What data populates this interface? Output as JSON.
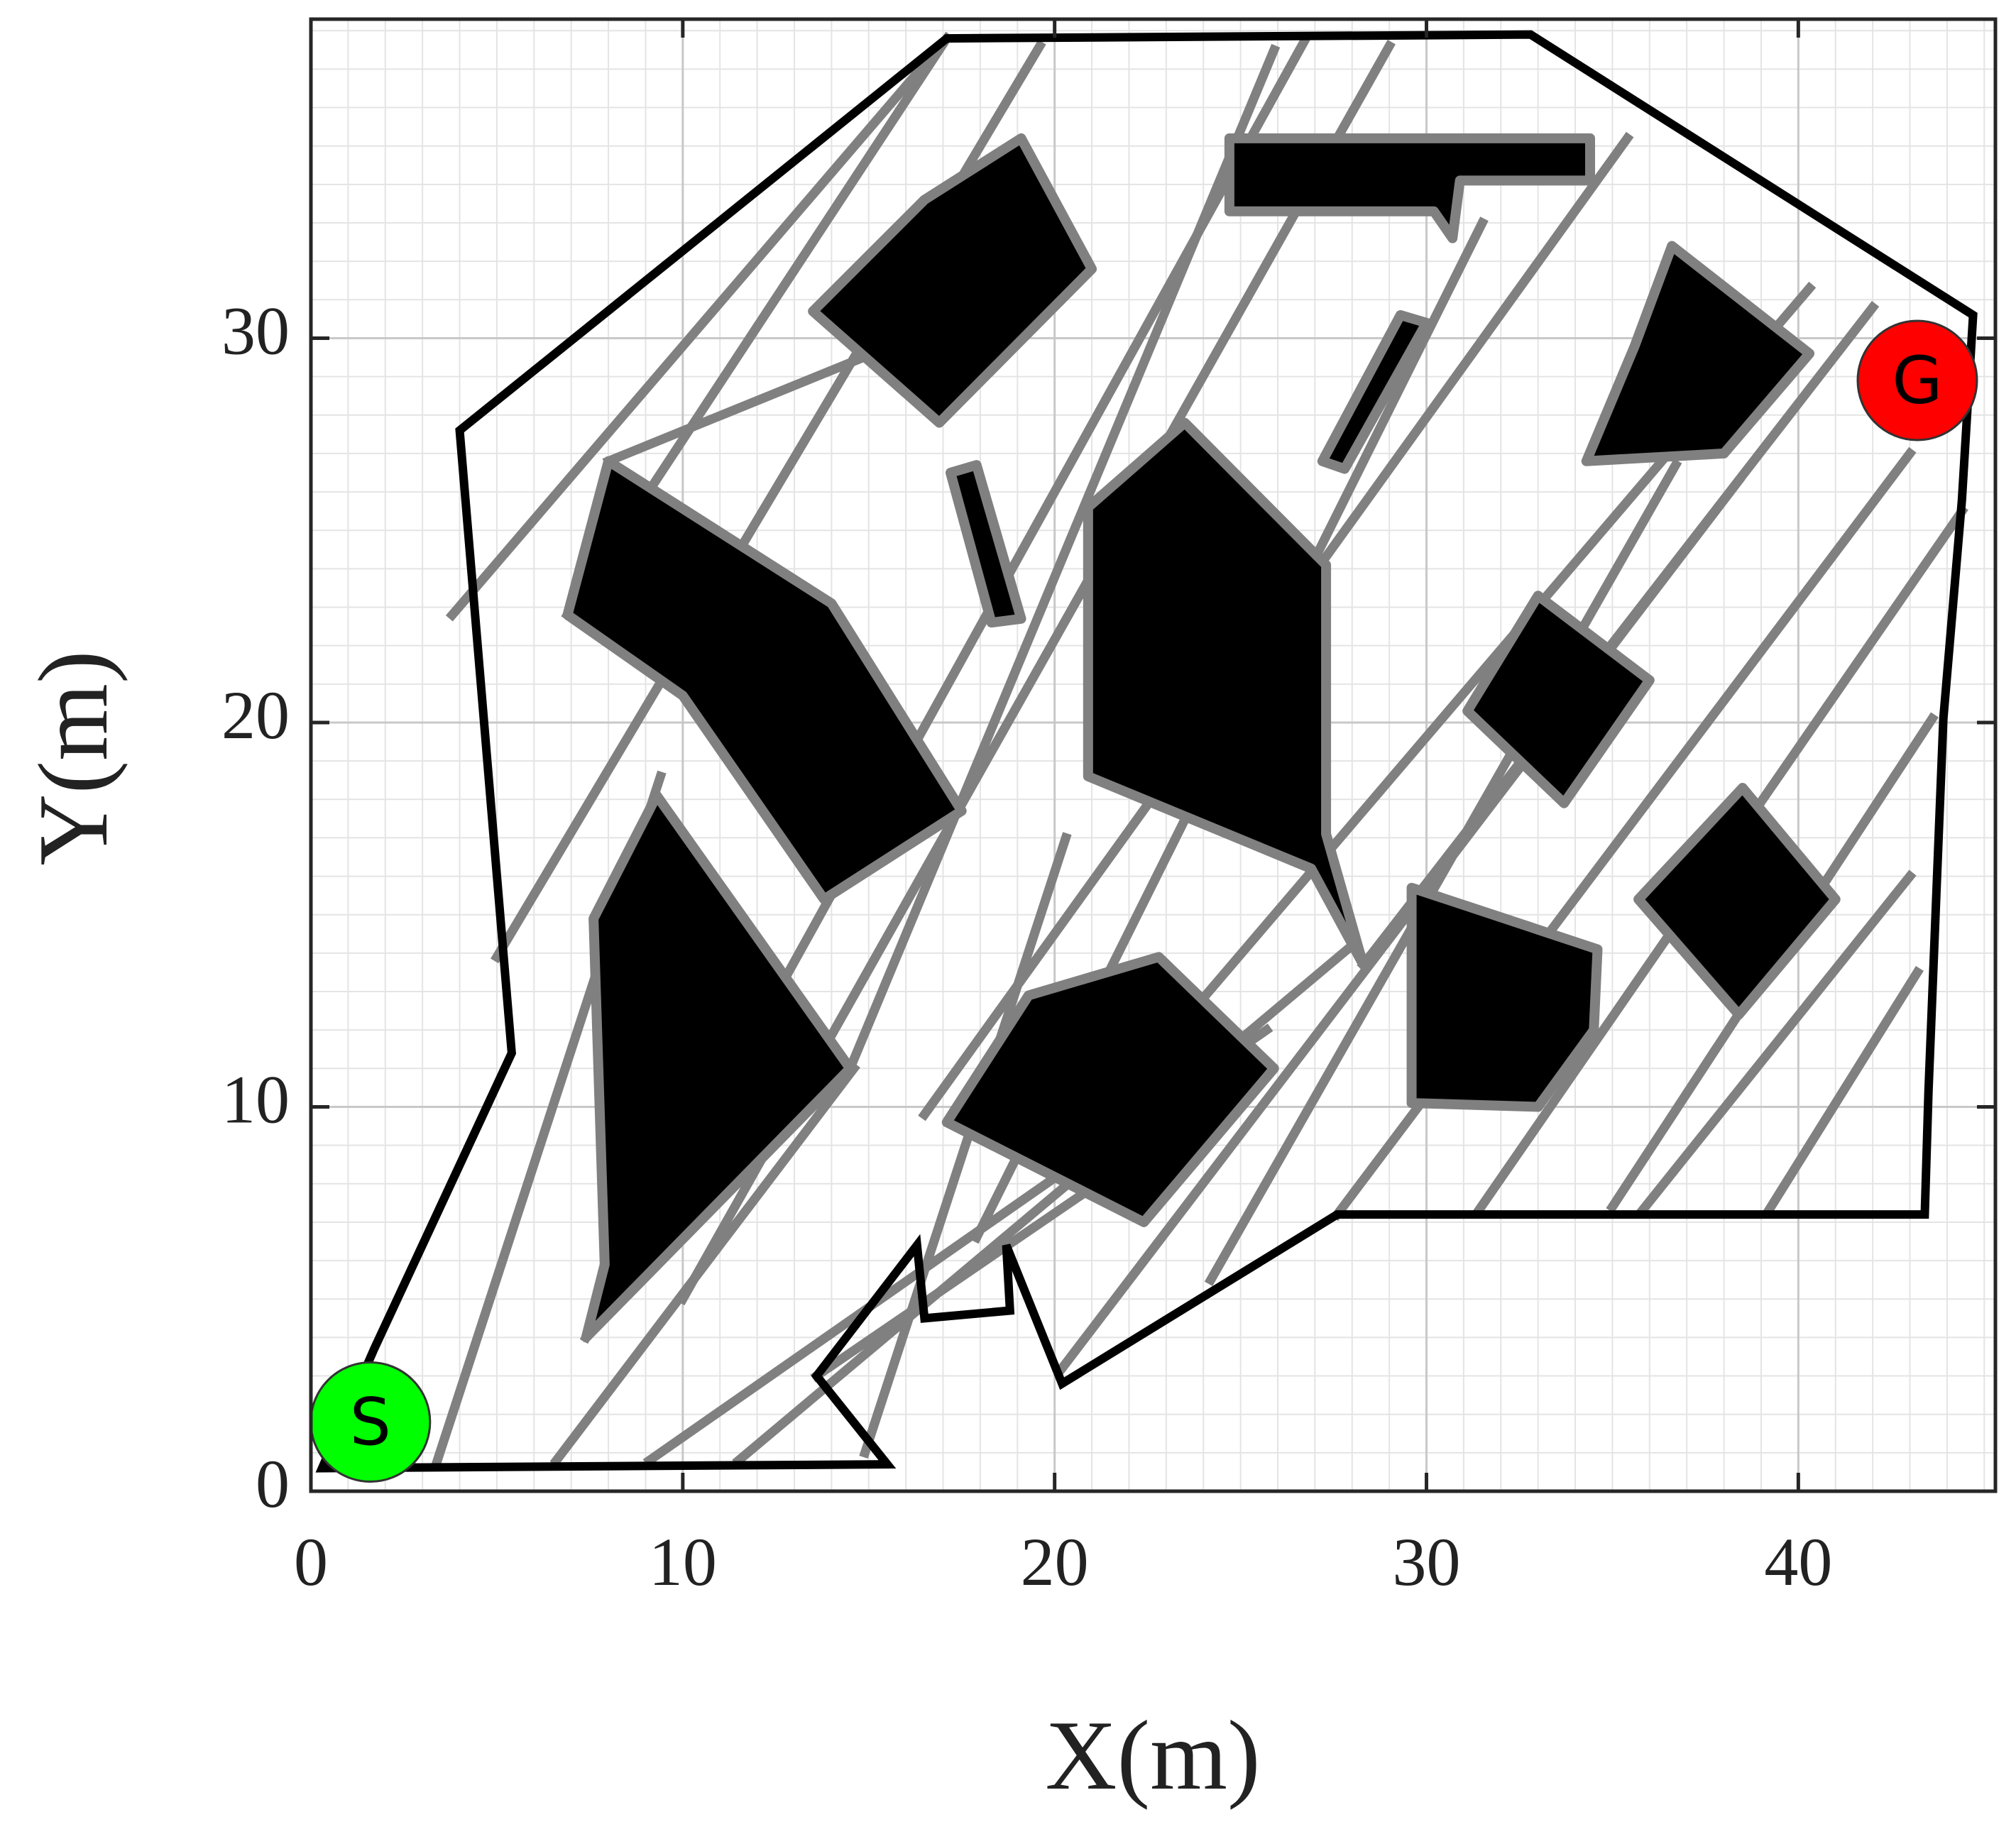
{
  "chart_data": {
    "type": "map",
    "x_label": "X(m)",
    "y_label": "Y(m)",
    "xlim": [
      0,
      45.3
    ],
    "ylim": [
      0,
      38.3
    ],
    "xticks": [
      0,
      10,
      20,
      30,
      40
    ],
    "yticks": [
      0,
      10,
      20,
      30
    ],
    "grid": true,
    "boundary": {
      "color": "#000000",
      "points": [
        [
          0.3,
          0.6
        ],
        [
          15.5,
          0.7
        ],
        [
          13.6,
          3.0
        ],
        [
          16.3,
          6.4
        ],
        [
          16.5,
          4.5
        ],
        [
          18.8,
          4.7
        ],
        [
          18.7,
          6.4
        ],
        [
          20.2,
          2.8
        ],
        [
          27.6,
          7.2
        ],
        [
          43.4,
          7.2
        ],
        [
          43.5,
          10.4
        ],
        [
          43.9,
          20.1
        ],
        [
          44.4,
          25.8
        ],
        [
          44.7,
          30.6
        ],
        [
          32.8,
          37.9
        ],
        [
          17.1,
          37.8
        ],
        [
          4.0,
          27.6
        ],
        [
          5.4,
          11.4
        ],
        [
          1.7,
          3.7
        ]
      ]
    },
    "edges": {
      "color": "#808080",
      "segments": [
        [
          3.4,
          0.8,
          9.4,
          18.6
        ],
        [
          6.6,
          0.8,
          14.6,
          11.0
        ],
        [
          9.1,
          0.8,
          25.7,
          12.0
        ],
        [
          11.5,
          0.8,
          28.0,
          14.2
        ],
        [
          14.9,
          1.0,
          20.3,
          17.0
        ],
        [
          13.6,
          3.0,
          25.7,
          11.0
        ],
        [
          20.2,
          3.2,
          38.4,
          26.3
        ],
        [
          24.2,
          5.5,
          36.7,
          26.7
        ],
        [
          27.6,
          7.2,
          43.0,
          27.0
        ],
        [
          31.4,
          7.3,
          44.4,
          25.5
        ],
        [
          35.0,
          7.4,
          43.6,
          20.1
        ],
        [
          35.8,
          7.3,
          43.0,
          16.0
        ],
        [
          39.2,
          7.3,
          43.2,
          13.5
        ],
        [
          7.4,
          4.0,
          26.7,
          37.7
        ],
        [
          10.0,
          5.0,
          29.0,
          37.6
        ],
        [
          14.5,
          11.0,
          25.9,
          37.5
        ],
        [
          16.5,
          9.8,
          35.4,
          35.2
        ],
        [
          17.9,
          6.6,
          31.5,
          33.0
        ],
        [
          21.5,
          10.0,
          40.3,
          31.3
        ],
        [
          3.8,
          22.8,
          17.1,
          37.8
        ],
        [
          5.0,
          13.9,
          19.6,
          37.6
        ],
        [
          8.0,
          26.8,
          20.7,
          31.8
        ],
        [
          28.3,
          13.7,
          42.0,
          30.8
        ],
        [
          6.9,
          22.8,
          17.1,
          37.8
        ]
      ]
    },
    "obstacles": {
      "color": "#000000",
      "outline": "#808080",
      "polygons": [
        [
          [
            13.5,
            30.7
          ],
          [
            16.5,
            33.6
          ],
          [
            19.1,
            35.2
          ],
          [
            21.0,
            31.8
          ],
          [
            16.9,
            27.8
          ]
        ],
        [
          [
            8.0,
            26.8
          ],
          [
            6.9,
            22.8
          ],
          [
            10.0,
            20.7
          ],
          [
            13.8,
            15.4
          ],
          [
            17.5,
            17.7
          ],
          [
            14.0,
            23.1
          ]
        ],
        [
          [
            9.3,
            18.1
          ],
          [
            7.6,
            14.9
          ],
          [
            7.9,
            5.9
          ],
          [
            7.4,
            4.0
          ],
          [
            14.5,
            11.0
          ]
        ],
        [
          [
            17.2,
            26.5
          ],
          [
            17.9,
            26.7
          ],
          [
            19.1,
            22.7
          ],
          [
            18.3,
            22.6
          ]
        ],
        [
          [
            20.9,
            25.6
          ],
          [
            23.5,
            27.8
          ],
          [
            27.3,
            24.1
          ],
          [
            27.3,
            17.1
          ],
          [
            28.3,
            13.7
          ],
          [
            26.9,
            16.2
          ],
          [
            20.9,
            18.6
          ]
        ],
        [
          [
            17.1,
            9.6
          ],
          [
            19.3,
            12.9
          ],
          [
            22.8,
            13.9
          ],
          [
            25.9,
            11.0
          ],
          [
            22.4,
            7.0
          ]
        ],
        [
          [
            24.7,
            35.2
          ],
          [
            34.4,
            35.2
          ],
          [
            34.4,
            34.1
          ],
          [
            30.9,
            34.1
          ],
          [
            30.7,
            32.6
          ],
          [
            30.2,
            33.3
          ],
          [
            24.7,
            33.3
          ]
        ],
        [
          [
            29.3,
            30.6
          ],
          [
            30.0,
            30.4
          ],
          [
            27.8,
            26.6
          ],
          [
            27.2,
            26.8
          ]
        ],
        [
          [
            36.6,
            32.4
          ],
          [
            40.3,
            29.6
          ],
          [
            38.0,
            27.0
          ],
          [
            34.3,
            26.8
          ],
          [
            35.6,
            29.8
          ]
        ],
        [
          [
            33.0,
            23.3
          ],
          [
            36.0,
            21.1
          ],
          [
            33.7,
            17.9
          ],
          [
            31.1,
            20.3
          ]
        ],
        [
          [
            38.5,
            18.3
          ],
          [
            41.0,
            15.4
          ],
          [
            38.4,
            12.4
          ],
          [
            35.7,
            15.4
          ]
        ],
        [
          [
            29.6,
            15.7
          ],
          [
            34.6,
            14.1
          ],
          [
            34.5,
            12.0
          ],
          [
            33.0,
            10.0
          ],
          [
            29.6,
            10.1
          ]
        ]
      ]
    },
    "start": {
      "label": "S",
      "x": 1.6,
      "y": 1.8,
      "color": "#00ff00"
    },
    "goal": {
      "label": "G",
      "x": 43.2,
      "y": 28.9,
      "color": "#ff0000"
    }
  }
}
